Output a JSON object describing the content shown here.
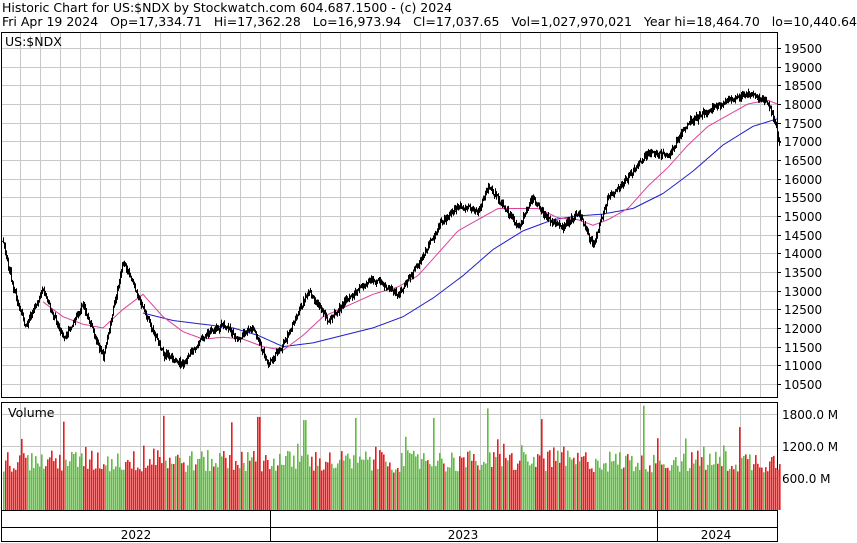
{
  "header": {
    "line1": "Historic Chart for US:$NDX by Stockwatch.com 604.687.1500 - (c) 2024",
    "line2": "Fri Apr 19 2024   Op=17,334.71   Hi=17,362.28   Lo=16,973.94   Cl=17,037.65   Vol=1,027,970,021   Year hi=18,464.70   lo=10,440.64"
  },
  "chart_data": {
    "type": "candlestick",
    "symbol_label": "US:$NDX",
    "volume_label": "Volume",
    "price_axis": {
      "ylim": [
        10150,
        19900
      ],
      "ticks": [
        10500,
        11000,
        11500,
        12000,
        12500,
        13000,
        13500,
        14000,
        14500,
        15000,
        15500,
        16000,
        16500,
        17000,
        17500,
        18000,
        18500,
        19000,
        19500
      ]
    },
    "volume_axis": {
      "ylim": [
        0,
        2000
      ],
      "ticks": [
        {
          "value": 600,
          "label": "600.0 M"
        },
        {
          "value": 1200,
          "label": "1200.0 M"
        },
        {
          "value": 1800,
          "label": "1800.0 M"
        }
      ]
    },
    "time_axis": [
      "2022",
      "2023",
      "2024"
    ],
    "price_anchors": [
      [
        0,
        14300
      ],
      [
        10,
        13100
      ],
      [
        22,
        12050
      ],
      [
        40,
        13000
      ],
      [
        60,
        11700
      ],
      [
        80,
        12600
      ],
      [
        100,
        11200
      ],
      [
        120,
        13800
      ],
      [
        140,
        12500
      ],
      [
        160,
        11300
      ],
      [
        180,
        11000
      ],
      [
        200,
        11800
      ],
      [
        220,
        12100
      ],
      [
        235,
        11700
      ],
      [
        250,
        12000
      ],
      [
        265,
        11000
      ],
      [
        285,
        11800
      ],
      [
        305,
        13000
      ],
      [
        325,
        12200
      ],
      [
        345,
        12800
      ],
      [
        370,
        13300
      ],
      [
        395,
        12900
      ],
      [
        415,
        13700
      ],
      [
        435,
        14700
      ],
      [
        455,
        15300
      ],
      [
        475,
        15100
      ],
      [
        485,
        15800
      ],
      [
        500,
        15300
      ],
      [
        515,
        14700
      ],
      [
        530,
        15500
      ],
      [
        545,
        14900
      ],
      [
        560,
        14700
      ],
      [
        575,
        15100
      ],
      [
        590,
        14200
      ],
      [
        605,
        15500
      ],
      [
        625,
        16000
      ],
      [
        645,
        16700
      ],
      [
        665,
        16600
      ],
      [
        685,
        17500
      ],
      [
        705,
        17800
      ],
      [
        725,
        18100
      ],
      [
        745,
        18300
      ],
      [
        765,
        18000
      ],
      [
        771,
        17600
      ],
      [
        776,
        17040
      ]
    ],
    "ma_short": [
      [
        40,
        12700
      ],
      [
        60,
        12300
      ],
      [
        80,
        12100
      ],
      [
        100,
        12000
      ],
      [
        120,
        12500
      ],
      [
        140,
        12900
      ],
      [
        160,
        12300
      ],
      [
        180,
        11900
      ],
      [
        200,
        11700
      ],
      [
        220,
        11750
      ],
      [
        240,
        11700
      ],
      [
        260,
        11500
      ],
      [
        280,
        11400
      ],
      [
        300,
        11800
      ],
      [
        320,
        12300
      ],
      [
        345,
        12600
      ],
      [
        370,
        12900
      ],
      [
        395,
        13100
      ],
      [
        415,
        13400
      ],
      [
        435,
        14000
      ],
      [
        455,
        14600
      ],
      [
        475,
        14900
      ],
      [
        495,
        15200
      ],
      [
        515,
        15200
      ],
      [
        535,
        15200
      ],
      [
        555,
        14950
      ],
      [
        575,
        14900
      ],
      [
        590,
        14750
      ],
      [
        605,
        14900
      ],
      [
        625,
        15200
      ],
      [
        645,
        15800
      ],
      [
        665,
        16300
      ],
      [
        685,
        16900
      ],
      [
        705,
        17400
      ],
      [
        725,
        17700
      ],
      [
        745,
        18000
      ],
      [
        765,
        18100
      ],
      [
        774,
        18000
      ]
    ],
    "ma_long": [
      [
        140,
        12400
      ],
      [
        170,
        12200
      ],
      [
        200,
        12100
      ],
      [
        230,
        12000
      ],
      [
        255,
        11800
      ],
      [
        280,
        11500
      ],
      [
        310,
        11600
      ],
      [
        340,
        11800
      ],
      [
        370,
        12000
      ],
      [
        400,
        12300
      ],
      [
        430,
        12800
      ],
      [
        460,
        13400
      ],
      [
        490,
        14100
      ],
      [
        520,
        14600
      ],
      [
        550,
        14900
      ],
      [
        575,
        15000
      ],
      [
        600,
        15050
      ],
      [
        630,
        15200
      ],
      [
        660,
        15600
      ],
      [
        690,
        16200
      ],
      [
        720,
        16900
      ],
      [
        750,
        17400
      ],
      [
        774,
        17600
      ]
    ],
    "colors": {
      "candle": "#000000",
      "ma_short": "#e0409c",
      "ma_long": "#1f1fc8",
      "volume_up": "#5cbf3c",
      "volume_down": "#ee1b1b",
      "grid": "#c8c8c8"
    }
  }
}
